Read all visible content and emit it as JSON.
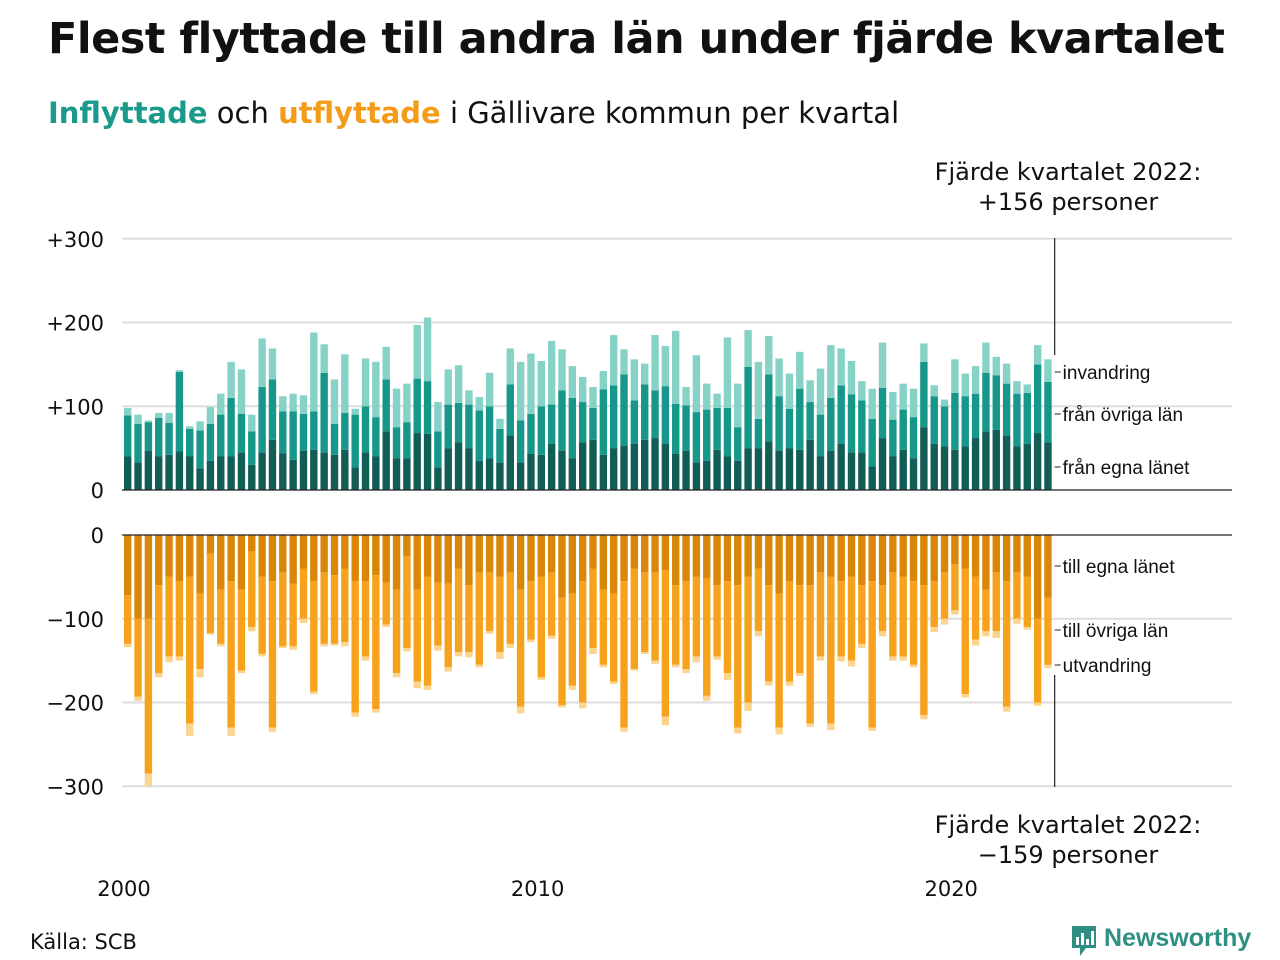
{
  "title": "Flest flyttade till andra län under fjärde kvartalet",
  "subtitle": {
    "inflow_word": "Inflyttade",
    "middle": "och",
    "outflow_word": "utflyttade",
    "rest": "i Gällivare kommun per kvartal"
  },
  "colors": {
    "in_local": "#125e57",
    "in_other": "#17978a",
    "in_immig": "#86d2c6",
    "out_local": "#d98708",
    "out_other": "#f7a21d",
    "out_emig": "#fbd48f",
    "grid": "#dddddd",
    "brand": "#2f8f83"
  },
  "annotations": {
    "top_line1": "Fjärde kvartalet 2022:",
    "top_line2": "+156 personer",
    "bottom_line1": "Fjärde kvartalet 2022:",
    "bottom_line2": "−159 personer"
  },
  "source": "Källa: SCB",
  "brand": "Newsworthy",
  "chart_data": [
    {
      "type": "bar",
      "stacked": true,
      "panel": "inflyttade",
      "x_start": "2000 Q1",
      "x_ticks": [
        "2000",
        "2010",
        "2020"
      ],
      "y_ticks": [
        "0",
        "+100",
        "+200",
        "+300"
      ],
      "ylim": [
        0,
        300
      ],
      "grid": true,
      "series": [
        {
          "name": "från egna länet",
          "values": [
            40,
            33,
            47,
            40,
            42,
            46,
            40,
            26,
            35,
            40,
            40,
            45,
            30,
            45,
            60,
            44,
            36,
            47,
            48,
            45,
            42,
            48,
            27,
            45,
            40,
            70,
            38,
            38,
            68,
            67,
            27,
            50,
            57,
            50,
            35,
            38,
            33,
            65,
            33,
            43,
            42,
            55,
            47,
            38,
            57,
            60,
            42,
            50,
            53,
            55,
            60,
            62,
            55,
            43,
            47,
            33,
            35,
            48,
            40,
            35,
            50,
            50,
            58,
            47,
            50,
            48,
            60,
            40,
            47,
            55,
            45,
            45,
            28,
            62,
            40,
            48,
            38,
            75,
            55,
            52,
            48,
            52,
            62,
            70,
            72,
            65,
            52,
            55,
            68,
            57
          ]
        },
        {
          "name": "från övriga län",
          "values": [
            49,
            46,
            34,
            46,
            38,
            95,
            33,
            45,
            44,
            50,
            70,
            46,
            40,
            78,
            72,
            50,
            58,
            44,
            46,
            95,
            37,
            44,
            63,
            55,
            47,
            62,
            37,
            43,
            65,
            63,
            43,
            52,
            47,
            52,
            60,
            62,
            40,
            61,
            50,
            48,
            58,
            47,
            72,
            72,
            48,
            38,
            78,
            75,
            85,
            52,
            66,
            57,
            69,
            60,
            54,
            60,
            61,
            50,
            58,
            40,
            97,
            35,
            80,
            65,
            47,
            73,
            45,
            50,
            63,
            70,
            69,
            62,
            57,
            60,
            44,
            48,
            49,
            78,
            57,
            48,
            68,
            60,
            53,
            70,
            65,
            62,
            63,
            61,
            82,
            72
          ]
        },
        {
          "name": "invandring",
          "values": [
            9,
            11,
            2,
            6,
            12,
            2,
            3,
            11,
            20,
            25,
            43,
            53,
            20,
            58,
            37,
            18,
            21,
            22,
            94,
            34,
            53,
            70,
            7,
            57,
            66,
            39,
            46,
            46,
            64,
            76,
            35,
            42,
            45,
            17,
            16,
            40,
            12,
            43,
            70,
            72,
            54,
            76,
            49,
            38,
            30,
            25,
            22,
            60,
            30,
            49,
            25,
            66,
            48,
            87,
            22,
            68,
            31,
            17,
            84,
            52,
            44,
            68,
            46,
            45,
            42,
            44,
            26,
            55,
            63,
            44,
            40,
            23,
            36,
            54,
            33,
            31,
            34,
            22,
            13,
            8,
            40,
            27,
            33,
            36,
            22,
            24,
            15,
            10,
            23,
            27
          ]
        }
      ]
    },
    {
      "type": "bar",
      "stacked": true,
      "panel": "utflyttade",
      "x_start": "2000 Q1",
      "x_ticks": [
        "2000",
        "2010",
        "2020"
      ],
      "y_ticks": [
        "0",
        "−100",
        "−200",
        "−300"
      ],
      "ylim": [
        -300,
        0
      ],
      "grid": true,
      "series": [
        {
          "name": "till egna länet",
          "values": [
            -72,
            -100,
            -100,
            -60,
            -50,
            -55,
            -50,
            -70,
            -22,
            -65,
            -55,
            -65,
            -20,
            -50,
            -55,
            -45,
            -58,
            -40,
            -55,
            -45,
            -48,
            -40,
            -55,
            -55,
            -48,
            -57,
            -65,
            -25,
            -65,
            -50,
            -57,
            -58,
            -40,
            -60,
            -45,
            -45,
            -50,
            -45,
            -65,
            -55,
            -50,
            -45,
            -75,
            -70,
            -55,
            -40,
            -65,
            -70,
            -55,
            -40,
            -45,
            -45,
            -42,
            -60,
            -55,
            -50,
            -52,
            -60,
            -55,
            -60,
            -50,
            -40,
            -60,
            -70,
            -55,
            -60,
            -60,
            -45,
            -50,
            -55,
            -50,
            -60,
            -55,
            -60,
            -45,
            -50,
            -55,
            -60,
            -55,
            -45,
            -35,
            -40,
            -50,
            -65,
            -45,
            -55,
            -45,
            -50,
            -100,
            -75
          ]
        },
        {
          "name": "till övriga län",
          "values": [
            -58,
            -93,
            -185,
            -105,
            -95,
            -90,
            -175,
            -90,
            -95,
            -65,
            -175,
            -97,
            -90,
            -92,
            -175,
            -88,
            -75,
            -60,
            -132,
            -85,
            -82,
            -88,
            -157,
            -90,
            -160,
            -50,
            -100,
            -110,
            -110,
            -130,
            -75,
            -100,
            -100,
            -80,
            -110,
            -70,
            -90,
            -85,
            -140,
            -70,
            -120,
            -75,
            -128,
            -110,
            -145,
            -95,
            -90,
            -105,
            -175,
            -120,
            -95,
            -105,
            -175,
            -95,
            -105,
            -95,
            -140,
            -85,
            -110,
            -170,
            -150,
            -75,
            -115,
            -160,
            -120,
            -105,
            -165,
            -100,
            -175,
            -90,
            -100,
            -70,
            -175,
            -55,
            -100,
            -95,
            -100,
            -155,
            -55,
            -55,
            -55,
            -150,
            -75,
            -50,
            -70,
            -150,
            -55,
            -60,
            -100,
            -80
          ]
        },
        {
          "name": "utvandring",
          "values": [
            -4,
            -5,
            -15,
            -5,
            -7,
            -5,
            -15,
            -10,
            -2,
            -3,
            -10,
            -3,
            -5,
            -3,
            -5,
            -2,
            -4,
            -5,
            -3,
            -3,
            -2,
            -5,
            -5,
            -5,
            -4,
            -3,
            -5,
            -4,
            -8,
            -5,
            -6,
            -5,
            -5,
            -6,
            -3,
            -3,
            -8,
            -5,
            -8,
            -3,
            -3,
            -4,
            -3,
            -5,
            -7,
            -7,
            -3,
            -3,
            -5,
            -2,
            -2,
            -4,
            -10,
            -3,
            -5,
            -7,
            -6,
            -4,
            -8,
            -7,
            -10,
            -6,
            -5,
            -8,
            -5,
            -3,
            -4,
            -5,
            -8,
            -6,
            -7,
            -5,
            -4,
            -6,
            -5,
            -5,
            -3,
            -5,
            -6,
            -7,
            -5,
            -4,
            -7,
            -6,
            -8,
            -6,
            -6,
            -3,
            -4,
            -4
          ]
        }
      ]
    }
  ]
}
